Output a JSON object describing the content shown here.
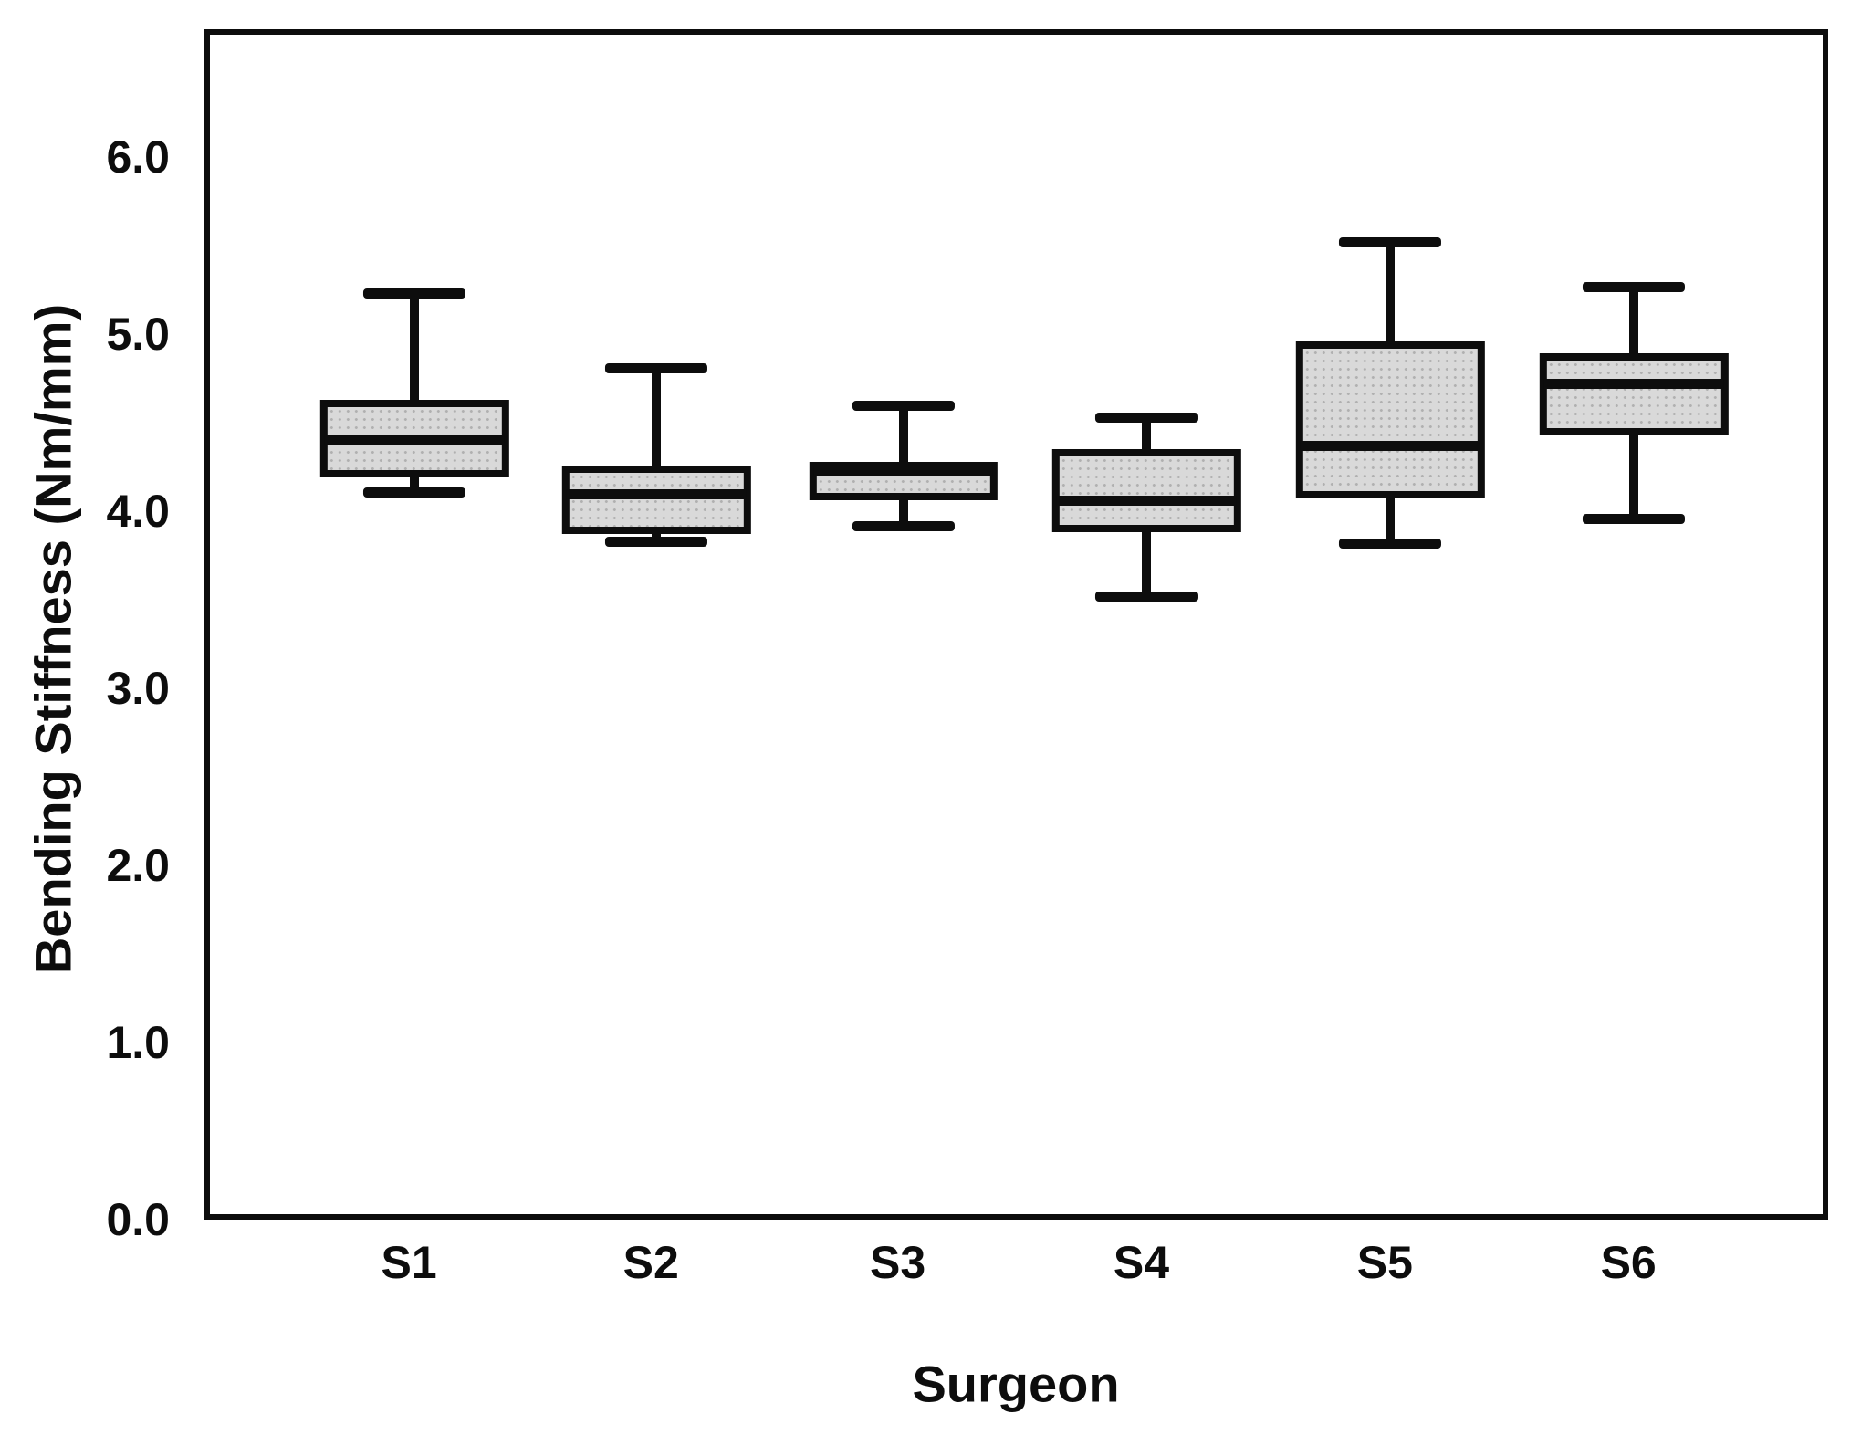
{
  "chart_data": {
    "type": "boxplot",
    "title": "",
    "xlabel": "Surgeon",
    "ylabel": "Bending Stiffness (Nm/mm)",
    "categories": [
      "S1",
      "S2",
      "S3",
      "S4",
      "S5",
      "S6"
    ],
    "ytick_labels": [
      "0.0",
      "1.0",
      "2.0",
      "3.0",
      "4.0",
      "5.0",
      "6.0"
    ],
    "ytick_values": [
      0,
      1,
      2,
      3,
      4,
      5,
      6
    ],
    "ylim": [
      0,
      6.72
    ],
    "series": [
      {
        "category": "S1",
        "whisker_low": 4.14,
        "q1": 4.22,
        "median": 4.43,
        "q3": 4.66,
        "whisker_high": 5.26
      },
      {
        "category": "S2",
        "whisker_low": 3.86,
        "q1": 3.9,
        "median": 4.13,
        "q3": 4.29,
        "whisker_high": 4.84
      },
      {
        "category": "S3",
        "whisker_low": 3.95,
        "q1": 4.09,
        "median": 4.26,
        "q3": 4.31,
        "whisker_high": 4.63
      },
      {
        "category": "S4",
        "whisker_low": 3.55,
        "q1": 3.91,
        "median": 4.09,
        "q3": 4.38,
        "whisker_high": 4.56
      },
      {
        "category": "S5",
        "whisker_low": 3.85,
        "q1": 4.1,
        "median": 4.4,
        "q3": 4.99,
        "whisker_high": 5.55
      },
      {
        "category": "S6",
        "whisker_low": 3.99,
        "q1": 4.46,
        "median": 4.75,
        "q3": 4.92,
        "whisker_high": 5.3
      }
    ],
    "colors": {
      "line": "#0d0d0d",
      "box_fill": "#d9d9d9",
      "background": "#ffffff"
    },
    "layout": {
      "grid": false,
      "legend": false,
      "x_centers_pct": [
        12.6,
        27.5,
        42.7,
        57.7,
        72.7,
        87.7
      ],
      "box_width_pct": 11.6,
      "cap_width_pct": 6.3
    }
  }
}
